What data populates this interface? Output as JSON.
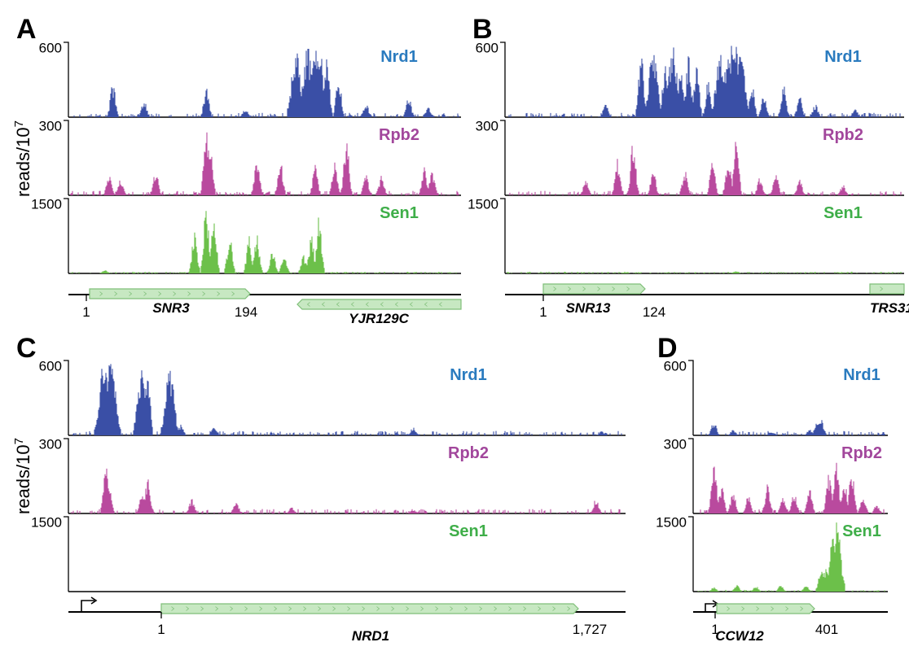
{
  "colors": {
    "Nrd1": "#3a4fa6",
    "Rpb2": "#b94a9e",
    "Sen1": "#6cc04a",
    "Nrd1_label": "#2a7bbf",
    "Rpb2_label": "#a2479c",
    "Sen1_label": "#3fae49",
    "gene_fill": "#c7e8c2",
    "gene_stroke": "#7fbf79"
  },
  "chart_data": [
    {
      "type": "area",
      "panel": "A",
      "ylabel": "reads/10",
      "ylabel_sup": "7",
      "tracks": [
        {
          "name": "Nrd1",
          "ymax": 600,
          "ymax_label": "600",
          "peaks": [
            [
              0.11,
              0.48
            ],
            [
              0.19,
              0.24
            ],
            [
              0.35,
              0.42
            ],
            [
              0.45,
              0.12
            ],
            [
              0.58,
              1.0
            ],
            [
              0.61,
              1.0
            ],
            [
              0.63,
              1.0
            ],
            [
              0.64,
              1.0
            ],
            [
              0.66,
              0.9
            ],
            [
              0.69,
              0.6
            ],
            [
              0.76,
              0.2
            ],
            [
              0.87,
              0.28
            ],
            [
              0.92,
              0.16
            ]
          ]
        },
        {
          "name": "Rpb2",
          "ymax": 300,
          "ymax_label": "300",
          "peaks": [
            [
              0.1,
              0.28
            ],
            [
              0.13,
              0.22
            ],
            [
              0.22,
              0.35
            ],
            [
              0.35,
              0.95
            ],
            [
              0.36,
              0.8
            ],
            [
              0.48,
              0.55
            ],
            [
              0.54,
              0.5
            ],
            [
              0.63,
              0.42
            ],
            [
              0.68,
              0.45
            ],
            [
              0.71,
              0.82
            ],
            [
              0.76,
              0.3
            ],
            [
              0.8,
              0.28
            ],
            [
              0.91,
              0.4
            ],
            [
              0.93,
              0.35
            ]
          ]
        },
        {
          "name": "Sen1",
          "ymax": 1500,
          "ymax_label": "1500",
          "peaks": [
            [
              0.09,
              0.05
            ],
            [
              0.32,
              0.6
            ],
            [
              0.35,
              0.98
            ],
            [
              0.37,
              0.86
            ],
            [
              0.41,
              0.55
            ],
            [
              0.46,
              0.52
            ],
            [
              0.48,
              0.55
            ],
            [
              0.52,
              0.32
            ],
            [
              0.55,
              0.28
            ],
            [
              0.6,
              0.25
            ],
            [
              0.62,
              0.55
            ],
            [
              0.64,
              0.82
            ]
          ]
        }
      ],
      "genes": [
        {
          "name": "SNR3",
          "start": "1",
          "end": "194",
          "strand": "+"
        },
        {
          "name": "YJR129C",
          "start": "",
          "end": "",
          "strand": "-"
        }
      ]
    },
    {
      "type": "area",
      "panel": "B",
      "ylabel": "",
      "tracks": [
        {
          "name": "Nrd1",
          "ymax": 600,
          "ymax_label": "600",
          "peaks": [
            [
              0.25,
              0.18
            ],
            [
              0.34,
              0.95
            ],
            [
              0.37,
              1.0
            ],
            [
              0.4,
              0.8
            ],
            [
              0.42,
              1.0
            ],
            [
              0.44,
              0.65
            ],
            [
              0.46,
              0.9
            ],
            [
              0.48,
              0.78
            ],
            [
              0.51,
              0.55
            ],
            [
              0.54,
              1.0
            ],
            [
              0.56,
              1.0
            ],
            [
              0.57,
              1.0
            ],
            [
              0.58,
              1.0
            ],
            [
              0.59,
              1.0
            ],
            [
              0.62,
              0.45
            ],
            [
              0.65,
              0.32
            ],
            [
              0.7,
              0.48
            ],
            [
              0.74,
              0.3
            ],
            [
              0.78,
              0.18
            ],
            [
              0.88,
              0.12
            ]
          ]
        },
        {
          "name": "Rpb2",
          "ymax": 300,
          "ymax_label": "300",
          "peaks": [
            [
              0.2,
              0.22
            ],
            [
              0.28,
              0.5
            ],
            [
              0.32,
              0.8
            ],
            [
              0.37,
              0.4
            ],
            [
              0.45,
              0.35
            ],
            [
              0.52,
              0.48
            ],
            [
              0.56,
              0.55
            ],
            [
              0.58,
              0.8
            ],
            [
              0.64,
              0.25
            ],
            [
              0.68,
              0.32
            ],
            [
              0.74,
              0.22
            ],
            [
              0.85,
              0.15
            ]
          ]
        },
        {
          "name": "Sen1",
          "ymax": 1500,
          "ymax_label": "1500",
          "peaks": [
            [
              0.3,
              0.02
            ],
            [
              0.58,
              0.03
            ]
          ]
        }
      ],
      "genes": [
        {
          "name": "SNR13",
          "start": "1",
          "end": "124",
          "strand": "+"
        },
        {
          "name": "TRS31",
          "start": "",
          "end": "",
          "strand": "+"
        }
      ]
    },
    {
      "type": "area",
      "panel": "C",
      "ylabel": "reads/10",
      "ylabel_sup": "7",
      "tracks": [
        {
          "name": "Nrd1",
          "ymax": 600,
          "ymax_label": "600",
          "peaks": [
            [
              0.06,
              1.0
            ],
            [
              0.065,
              1.0
            ],
            [
              0.07,
              1.0
            ],
            [
              0.075,
              1.0
            ],
            [
              0.13,
              1.0
            ],
            [
              0.14,
              0.95
            ],
            [
              0.18,
              1.0
            ],
            [
              0.2,
              0.15
            ],
            [
              0.26,
              0.12
            ],
            [
              0.62,
              0.12
            ],
            [
              0.96,
              0.06
            ]
          ]
        },
        {
          "name": "Rpb2",
          "ymax": 300,
          "ymax_label": "300",
          "peaks": [
            [
              0.065,
              0.7
            ],
            [
              0.07,
              0.45
            ],
            [
              0.13,
              0.3
            ],
            [
              0.14,
              0.48
            ],
            [
              0.22,
              0.2
            ],
            [
              0.3,
              0.18
            ],
            [
              0.4,
              0.1
            ],
            [
              0.62,
              0.06
            ],
            [
              0.95,
              0.22
            ]
          ]
        },
        {
          "name": "Sen1",
          "ymax": 1500,
          "ymax_label": "1500",
          "peaks": []
        }
      ],
      "genes": [
        {
          "name": "NRD1",
          "start": "1",
          "end": "1,727",
          "strand": "+"
        }
      ]
    },
    {
      "type": "area",
      "panel": "D",
      "ylabel": "",
      "tracks": [
        {
          "name": "Nrd1",
          "ymax": 600,
          "ymax_label": "600",
          "peaks": [
            [
              0.1,
              0.2
            ],
            [
              0.2,
              0.08
            ],
            [
              0.4,
              0.06
            ],
            [
              0.6,
              0.08
            ],
            [
              0.64,
              0.2
            ],
            [
              0.66,
              0.22
            ]
          ]
        },
        {
          "name": "Rpb2",
          "ymax": 300,
          "ymax_label": "300",
          "peaks": [
            [
              0.1,
              0.78
            ],
            [
              0.14,
              0.4
            ],
            [
              0.2,
              0.32
            ],
            [
              0.28,
              0.25
            ],
            [
              0.38,
              0.4
            ],
            [
              0.46,
              0.22
            ],
            [
              0.52,
              0.3
            ],
            [
              0.6,
              0.35
            ],
            [
              0.7,
              0.55
            ],
            [
              0.74,
              0.7
            ],
            [
              0.78,
              0.5
            ],
            [
              0.82,
              0.6
            ],
            [
              0.88,
              0.25
            ],
            [
              0.95,
              0.12
            ]
          ]
        },
        {
          "name": "Sen1",
          "ymax": 1500,
          "ymax_label": "1500",
          "peaks": [
            [
              0.1,
              0.06
            ],
            [
              0.22,
              0.1
            ],
            [
              0.32,
              0.08
            ],
            [
              0.45,
              0.09
            ],
            [
              0.58,
              0.1
            ],
            [
              0.66,
              0.35
            ],
            [
              0.69,
              0.45
            ],
            [
              0.72,
              0.9
            ],
            [
              0.74,
              1.0
            ]
          ]
        }
      ],
      "genes": [
        {
          "name": "CCW12",
          "start": "1",
          "end": "401",
          "strand": "+"
        }
      ]
    }
  ]
}
